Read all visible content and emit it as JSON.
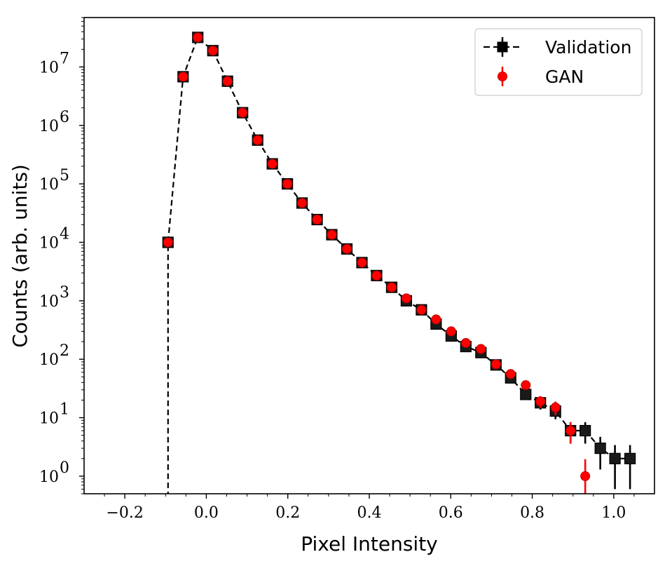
{
  "chart_data": {
    "type": "scatter",
    "xlabel": "Pixel Intensity",
    "ylabel": "Counts (arb. units)",
    "xlim": [
      -0.3,
      1.1
    ],
    "ylim": [
      0.5,
      70000000
    ],
    "yscale": "log",
    "grid": false,
    "legend_position": "top-right",
    "x_ticks": [
      {
        "value": -0.2,
        "label": "−0.2"
      },
      {
        "value": 0.0,
        "label": "0.0"
      },
      {
        "value": 0.2,
        "label": "0.2"
      },
      {
        "value": 0.4,
        "label": "0.4"
      },
      {
        "value": 0.6,
        "label": "0.6"
      },
      {
        "value": 0.8,
        "label": "0.8"
      },
      {
        "value": 1.0,
        "label": "1.0"
      }
    ],
    "y_ticks": [
      {
        "value": 1,
        "base": "10",
        "exp": "0"
      },
      {
        "value": 10,
        "base": "10",
        "exp": "1"
      },
      {
        "value": 100,
        "base": "10",
        "exp": "2"
      },
      {
        "value": 1000,
        "base": "10",
        "exp": "3"
      },
      {
        "value": 10000,
        "base": "10",
        "exp": "4"
      },
      {
        "value": 100000,
        "base": "10",
        "exp": "5"
      },
      {
        "value": 1000000,
        "base": "10",
        "exp": "6"
      },
      {
        "value": 10000000,
        "base": "10",
        "exp": "7"
      }
    ],
    "series": [
      {
        "name": "Validation",
        "color": "#000000",
        "marker": "square",
        "line": "dashed",
        "x": [
          -0.094,
          -0.057,
          -0.021,
          0.016,
          0.052,
          0.089,
          0.126,
          0.162,
          0.199,
          0.235,
          0.272,
          0.308,
          0.345,
          0.382,
          0.418,
          0.455,
          0.491,
          0.528,
          0.564,
          0.601,
          0.637,
          0.674,
          0.711,
          0.747,
          0.784,
          0.82,
          0.857,
          0.894,
          0.93,
          0.967,
          1.003,
          1.04
        ],
        "y": [
          10000,
          6800000,
          32000000,
          19000000,
          5700000,
          1650000,
          560000,
          220000,
          100000,
          47000,
          24500,
          13500,
          7700,
          4500,
          2700,
          1700,
          1000,
          700,
          400,
          250,
          165,
          130,
          80,
          48,
          25,
          18,
          13,
          6,
          6,
          3,
          2,
          2
        ],
        "yerr": [
          100,
          2600,
          5700,
          4400,
          2400,
          1300,
          750,
          470,
          320,
          217,
          157,
          116,
          88,
          67,
          52,
          41,
          32,
          26,
          20,
          16,
          13,
          11,
          9,
          7,
          5,
          4.2,
          3.6,
          2.4,
          2.4,
          1.7,
          1.4,
          1.4
        ]
      },
      {
        "name": "GAN",
        "color": "#ff0000",
        "marker": "circle",
        "line": "none",
        "x": [
          -0.094,
          -0.057,
          -0.021,
          0.016,
          0.052,
          0.089,
          0.126,
          0.162,
          0.199,
          0.235,
          0.272,
          0.308,
          0.345,
          0.382,
          0.418,
          0.455,
          0.491,
          0.528,
          0.564,
          0.601,
          0.637,
          0.674,
          0.711,
          0.747,
          0.784,
          0.82,
          0.857,
          0.894,
          0.93
        ],
        "y": [
          10000,
          6800000,
          32000000,
          19000000,
          5700000,
          1650000,
          560000,
          220000,
          100000,
          47000,
          24500,
          13500,
          7700,
          4500,
          2700,
          1700,
          1100,
          700,
          480,
          300,
          190,
          150,
          82,
          56,
          36,
          19,
          15,
          6,
          1
        ],
        "yerr": [
          100,
          2600,
          5700,
          4400,
          2400,
          1300,
          750,
          470,
          320,
          217,
          157,
          116,
          88,
          67,
          52,
          41,
          33,
          26,
          22,
          17,
          14,
          12,
          9,
          7.5,
          6,
          4.4,
          3.9,
          2.4,
          0.95
        ]
      }
    ],
    "legend": [
      {
        "label": "Validation"
      },
      {
        "label": "GAN"
      }
    ]
  }
}
